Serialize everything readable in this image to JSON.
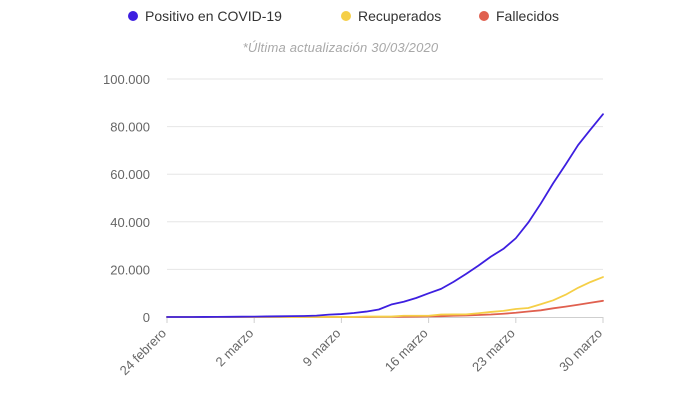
{
  "chart_data": {
    "type": "line",
    "title": "",
    "subtitle": "*Última actualización 30/03/2020",
    "xlabel": "",
    "ylabel": "",
    "ylim": [
      0,
      100000
    ],
    "yticks": [
      0,
      20000,
      40000,
      60000,
      80000,
      100000
    ],
    "ytick_labels": [
      "0",
      "20.000",
      "40.000",
      "60.000",
      "80.000",
      "100.000"
    ],
    "xticks": [
      {
        "day": 0,
        "label": "24 febrero"
      },
      {
        "day": 7,
        "label": "2 marzo"
      },
      {
        "day": 14,
        "label": "9 marzo"
      },
      {
        "day": 21,
        "label": "16 marzo"
      },
      {
        "day": 28,
        "label": "23 marzo"
      },
      {
        "day": 35,
        "label": "30 marzo"
      }
    ],
    "x": [
      0,
      1,
      2,
      3,
      4,
      5,
      6,
      7,
      8,
      9,
      10,
      11,
      12,
      13,
      14,
      15,
      16,
      17,
      18,
      19,
      20,
      21,
      22,
      23,
      24,
      25,
      26,
      27,
      28,
      29,
      30,
      31,
      32,
      33,
      34,
      35
    ],
    "grid": true,
    "legend_position": "top",
    "series": [
      {
        "name": "Positivo en COVID-19",
        "color": "#3d1fe0",
        "values": [
          2,
          3,
          13,
          32,
          45,
          84,
          120,
          165,
          228,
          282,
          365,
          430,
          589,
          999,
          1231,
          1695,
          2277,
          3146,
          5232,
          6391,
          7988,
          9942,
          11826,
          14769,
          18077,
          21571,
          25374,
          28603,
          33089,
          39673,
          47610,
          56188,
          64059,
          72248,
          78797,
          85195
        ]
      },
      {
        "name": "Recuperados",
        "color": "#f5cf47",
        "values": [
          0,
          0,
          0,
          0,
          0,
          0,
          0,
          0,
          0,
          0,
          2,
          2,
          2,
          2,
          30,
          32,
          183,
          189,
          193,
          517,
          517,
          530,
          1028,
          1081,
          1107,
          1588,
          2125,
          2575,
          3355,
          3794,
          5367,
          7015,
          9357,
          12285,
          14709,
          16780
        ]
      },
      {
        "name": "Fallecidos",
        "color": "#e0604f",
        "values": [
          0,
          0,
          0,
          0,
          0,
          0,
          0,
          0,
          0,
          1,
          2,
          3,
          5,
          10,
          17,
          28,
          35,
          54,
          55,
          133,
          195,
          289,
          342,
          533,
          623,
          830,
          1043,
          1375,
          1772,
          2311,
          2808,
          3647,
          4365,
          5138,
          5982,
          6803
        ]
      }
    ]
  }
}
